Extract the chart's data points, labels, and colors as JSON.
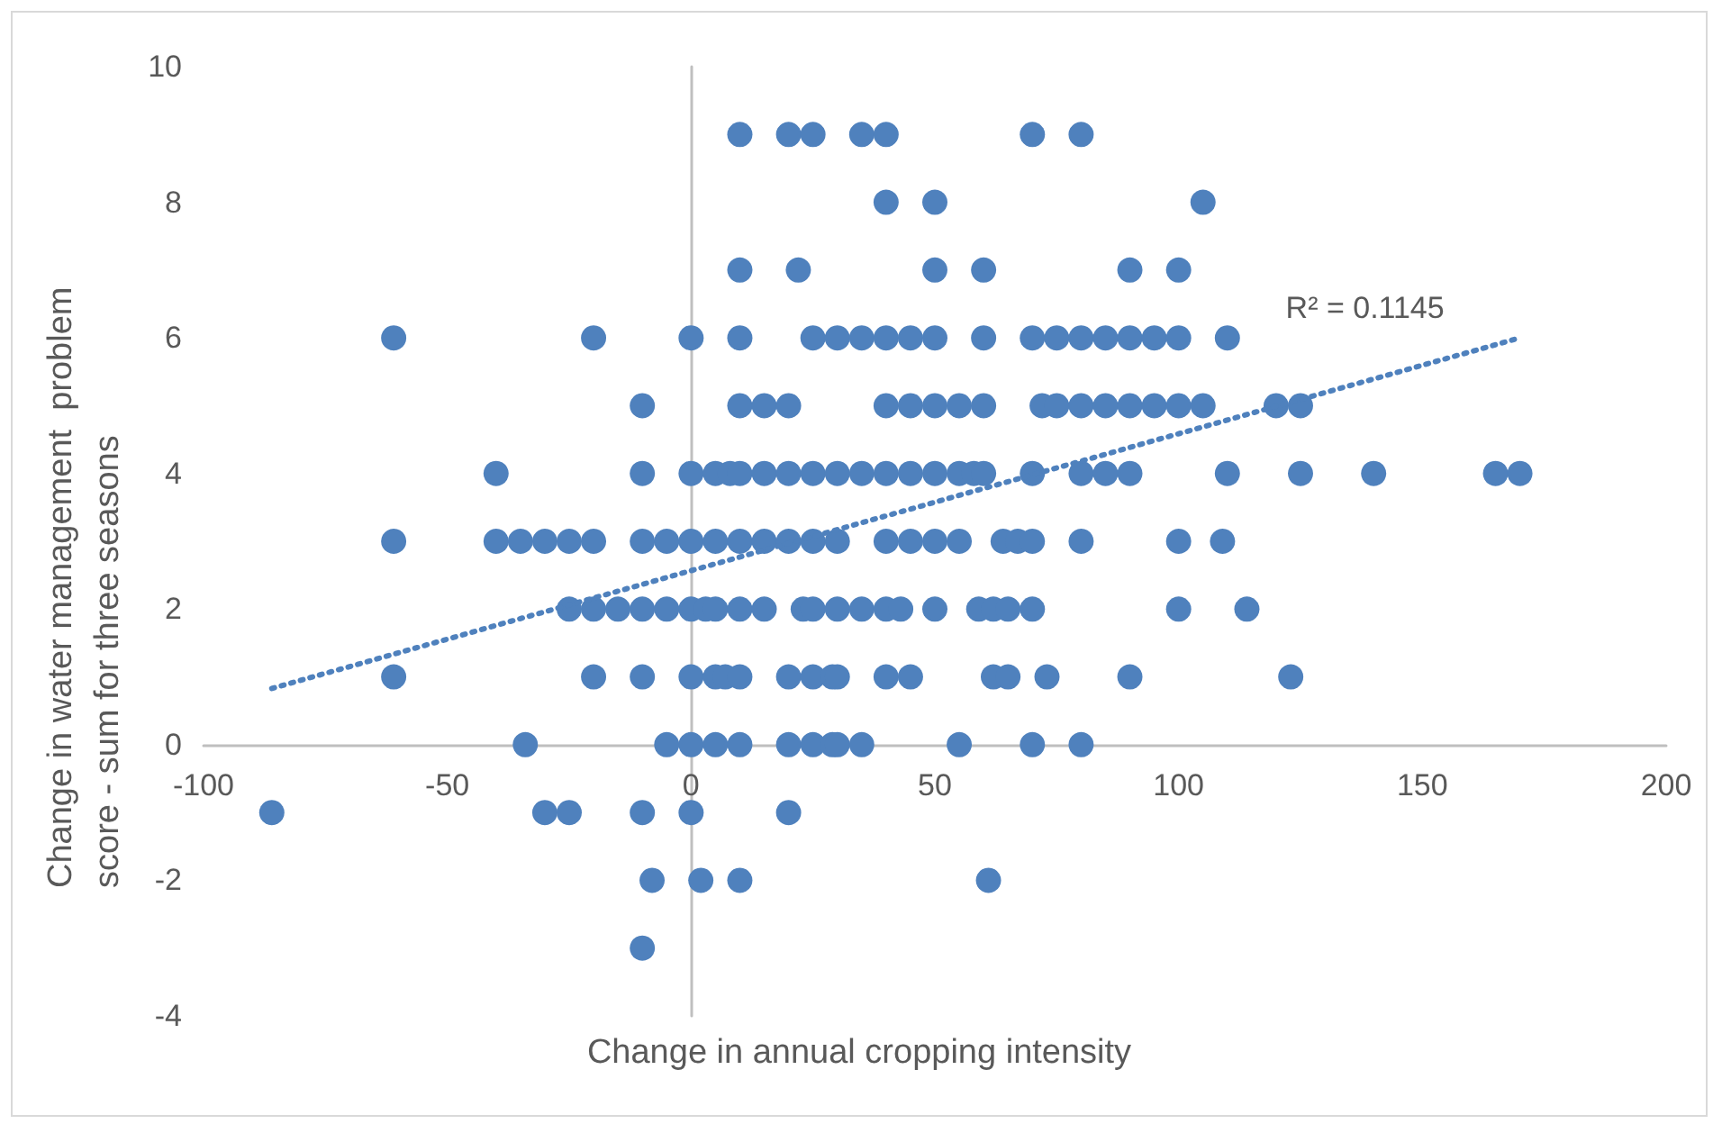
{
  "chart_data": {
    "type": "scatter",
    "xlabel": "Change in annual cropping intensity",
    "ylabel": "Change in water management  problem score - sum for three seasons",
    "annotations": [
      "R² = 0.1145"
    ],
    "xlim": [
      -100,
      200
    ],
    "xticks": [
      -100,
      -50,
      0,
      50,
      100,
      150,
      200
    ],
    "ylim": [
      -4,
      10
    ],
    "yticks": [
      -4,
      -2,
      0,
      2,
      4,
      6,
      8,
      10
    ],
    "series": [
      {
        "color": "#4f81bd",
        "marker": "circle",
        "x": [
          10,
          20,
          25,
          35,
          40,
          70,
          80,
          40,
          50,
          105,
          10,
          22,
          50,
          60,
          90,
          100,
          -61,
          -20,
          0,
          10,
          25,
          30,
          35,
          40,
          45,
          50,
          60,
          70,
          75,
          80,
          85,
          90,
          95,
          100,
          110,
          -10,
          10,
          15,
          20,
          40,
          45,
          50,
          55,
          60,
          72,
          75,
          80,
          85,
          90,
          95,
          100,
          105,
          120,
          125,
          -40,
          -10,
          0,
          5,
          8,
          10,
          15,
          20,
          25,
          30,
          35,
          40,
          45,
          50,
          55,
          58,
          60,
          70,
          80,
          85,
          90,
          110,
          125,
          140,
          165,
          170,
          -61,
          -40,
          -35,
          -30,
          -25,
          -20,
          -10,
          -5,
          0,
          5,
          10,
          15,
          20,
          25,
          30,
          40,
          45,
          50,
          55,
          64,
          67,
          70,
          80,
          100,
          109,
          -25,
          -20,
          -15,
          -10,
          -5,
          0,
          3,
          5,
          10,
          15,
          23,
          25,
          30,
          35,
          40,
          43,
          50,
          59,
          62,
          65,
          70,
          100,
          114,
          -61,
          -20,
          -10,
          0,
          5,
          7,
          10,
          20,
          25,
          29,
          30,
          40,
          45,
          62,
          65,
          73,
          90,
          123,
          -34,
          -5,
          0,
          5,
          10,
          20,
          25,
          29,
          30,
          35,
          55,
          70,
          80,
          -86,
          -30,
          -25,
          -10,
          0,
          20,
          -8,
          2,
          10,
          61,
          -10
        ],
        "values": [
          9,
          9,
          9,
          9,
          9,
          9,
          9,
          8,
          8,
          8,
          7,
          7,
          7,
          7,
          7,
          7,
          6,
          6,
          6,
          6,
          6,
          6,
          6,
          6,
          6,
          6,
          6,
          6,
          6,
          6,
          6,
          6,
          6,
          6,
          6,
          5,
          5,
          5,
          5,
          5,
          5,
          5,
          5,
          5,
          5,
          5,
          5,
          5,
          5,
          5,
          5,
          5,
          5,
          5,
          4,
          4,
          4,
          4,
          4,
          4,
          4,
          4,
          4,
          4,
          4,
          4,
          4,
          4,
          4,
          4,
          4,
          4,
          4,
          4,
          4,
          4,
          4,
          4,
          4,
          4,
          3,
          3,
          3,
          3,
          3,
          3,
          3,
          3,
          3,
          3,
          3,
          3,
          3,
          3,
          3,
          3,
          3,
          3,
          3,
          3,
          3,
          3,
          3,
          3,
          3,
          2,
          2,
          2,
          2,
          2,
          2,
          2,
          2,
          2,
          2,
          2,
          2,
          2,
          2,
          2,
          2,
          2,
          2,
          2,
          2,
          2,
          2,
          2,
          1,
          1,
          1,
          1,
          1,
          1,
          1,
          1,
          1,
          1,
          1,
          1,
          1,
          1,
          1,
          1,
          1,
          1,
          0,
          0,
          0,
          0,
          0,
          0,
          0,
          0,
          0,
          0,
          0,
          0,
          0,
          -1,
          -1,
          -1,
          -1,
          -1,
          -1,
          -2,
          -2,
          -2,
          -2,
          -3
        ]
      },
      {
        "type": "line",
        "color": "#4f81bd",
        "line_style": "dotted",
        "x": [
          -86,
          170
        ],
        "values": [
          0.83,
          6.0
        ]
      }
    ]
  }
}
